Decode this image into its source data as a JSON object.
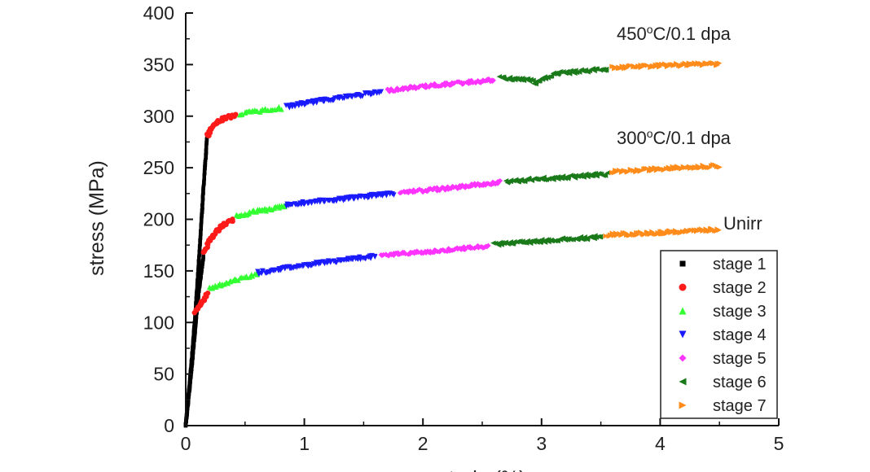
{
  "chart_data": {
    "type": "scatter",
    "xlabel": "strain (%)",
    "ylabel": "stress (MPa)",
    "xlim": [
      0,
      5
    ],
    "ylim": [
      0,
      400
    ],
    "xticks": [
      "0",
      "1",
      "2",
      "3",
      "4",
      "5"
    ],
    "yticks": [
      "0",
      "50",
      "100",
      "150",
      "200",
      "250",
      "300",
      "350",
      "400"
    ],
    "grid": false,
    "legend_position": "bottom-right",
    "legend": [
      {
        "label": "stage 1",
        "color": "#000000",
        "marker": "square"
      },
      {
        "label": "stage 2",
        "color": "#ff1a1a",
        "marker": "circle"
      },
      {
        "label": "stage 3",
        "color": "#33ff33",
        "marker": "triangle-up"
      },
      {
        "label": "stage 4",
        "color": "#1a1aff",
        "marker": "triangle-down"
      },
      {
        "label": "stage 5",
        "color": "#ff33ff",
        "marker": "diamond"
      },
      {
        "label": "stage 6",
        "color": "#1a7a1a",
        "marker": "triangle-left"
      },
      {
        "label": "stage 7",
        "color": "#ff8c1a",
        "marker": "triangle-right"
      }
    ],
    "curves": [
      {
        "label_parts": [
          "450",
          "o",
          "C/0.1 dpa"
        ],
        "segments": [
          {
            "stage": 1,
            "x": [
              0.0,
              0.05,
              0.1,
              0.15,
              0.18
            ],
            "y": [
              0,
              60,
              140,
              230,
              280
            ]
          },
          {
            "stage": 2,
            "x": [
              0.18,
              0.25,
              0.32,
              0.42
            ],
            "y": [
              280,
              293,
              298,
              301
            ]
          },
          {
            "stage": 3,
            "x": [
              0.45,
              0.6,
              0.8
            ],
            "y": [
              302,
              305,
              308
            ]
          },
          {
            "stage": 4,
            "x": [
              0.85,
              1.2,
              1.65
            ],
            "y": [
              309,
              316,
              323
            ]
          },
          {
            "stage": 5,
            "x": [
              1.7,
              2.1,
              2.6
            ],
            "y": [
              325,
              330,
              335
            ]
          },
          {
            "stage": 6,
            "x": [
              2.65,
              2.9,
              2.95,
              3.1,
              3.55
            ],
            "y": [
              337,
              335,
              332,
              341,
              346
            ]
          },
          {
            "stage": 7,
            "x": [
              3.6,
              4.0,
              4.5
            ],
            "y": [
              347,
              349,
              351
            ]
          }
        ]
      },
      {
        "label_parts": [
          "300",
          "o",
          "C/0.1 dpa"
        ],
        "segments": [
          {
            "stage": 1,
            "x": [
              0.0,
              0.05,
              0.1,
              0.15
            ],
            "y": [
              0,
              55,
              120,
              165
            ]
          },
          {
            "stage": 2,
            "x": [
              0.15,
              0.22,
              0.3,
              0.4
            ],
            "y": [
              168,
              183,
              193,
              200
            ]
          },
          {
            "stage": 3,
            "x": [
              0.42,
              0.6,
              0.85
            ],
            "y": [
              203,
              208,
              213
            ]
          },
          {
            "stage": 4,
            "x": [
              0.85,
              1.3,
              1.75
            ],
            "y": [
              214,
              219,
              225
            ]
          },
          {
            "stage": 5,
            "x": [
              1.8,
              2.2,
              2.65
            ],
            "y": [
              226,
              230,
              236
            ]
          },
          {
            "stage": 6,
            "x": [
              2.7,
              3.1,
              3.55
            ],
            "y": [
              237,
              240,
              244
            ]
          },
          {
            "stage": 7,
            "x": [
              3.6,
              4.0,
              4.5
            ],
            "y": [
              246,
              249,
              252
            ]
          }
        ]
      },
      {
        "label_parts": [
          "Unirr"
        ],
        "segments": [
          {
            "stage": 1,
            "x": [
              0.0,
              0.04,
              0.08
            ],
            "y": [
              0,
              50,
              105
            ]
          },
          {
            "stage": 2,
            "x": [
              0.08,
              0.13,
              0.18
            ],
            "y": [
              110,
              118,
              128
            ]
          },
          {
            "stage": 3,
            "x": [
              0.2,
              0.4,
              0.6
            ],
            "y": [
              133,
              141,
              147
            ]
          },
          {
            "stage": 4,
            "x": [
              0.6,
              1.1,
              1.6
            ],
            "y": [
              148,
              157,
              164
            ]
          },
          {
            "stage": 5,
            "x": [
              1.65,
              2.1,
              2.55
            ],
            "y": [
              165,
              169,
              174
            ]
          },
          {
            "stage": 6,
            "x": [
              2.6,
              3.0,
              3.5
            ],
            "y": [
              176,
              179,
              183
            ]
          },
          {
            "stage": 7,
            "x": [
              3.55,
              4.0,
              4.5
            ],
            "y": [
              185,
              187,
              190
            ]
          }
        ]
      }
    ]
  }
}
